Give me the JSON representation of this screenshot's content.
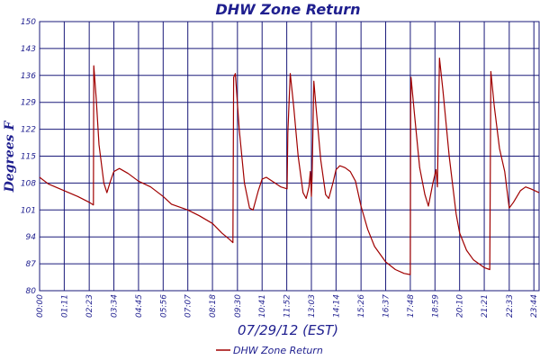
{
  "chart_data": {
    "type": "line",
    "title": "DHW Zone Return",
    "xlabel": "07/29/12 (EST)",
    "ylabel": "Degrees F",
    "ylim": [
      80,
      150
    ],
    "yticks": [
      "80",
      "87",
      "94",
      "101",
      "108",
      "115",
      "122",
      "129",
      "136",
      "143",
      "150"
    ],
    "xlim": [
      "00:00",
      "23:59"
    ],
    "xticks": [
      "00:00",
      "01:11",
      "02:23",
      "03:34",
      "04:45",
      "05:56",
      "07:07",
      "08:18",
      "09:30",
      "10:41",
      "11:52",
      "13:03",
      "14:14",
      "15:26",
      "16:37",
      "17:48",
      "18:59",
      "20:10",
      "21:21",
      "22:33",
      "23:44"
    ],
    "grid": true,
    "legend_position": "bottom",
    "series": [
      {
        "name": "DHW Zone Return",
        "color": "#a00000",
        "points": [
          [
            "00:00",
            109.5
          ],
          [
            "00:25",
            107.8
          ],
          [
            "01:11",
            106.0
          ],
          [
            "01:50",
            104.5
          ],
          [
            "02:23",
            103.0
          ],
          [
            "02:35",
            102.3
          ],
          [
            "02:36",
            138.5
          ],
          [
            "02:43",
            130.0
          ],
          [
            "02:51",
            118.0
          ],
          [
            "03:05",
            108.0
          ],
          [
            "03:14",
            105.5
          ],
          [
            "03:24",
            108.5
          ],
          [
            "03:34",
            111.0
          ],
          [
            "03:50",
            111.8
          ],
          [
            "04:15",
            110.5
          ],
          [
            "04:45",
            108.5
          ],
          [
            "05:20",
            107.0
          ],
          [
            "05:56",
            104.5
          ],
          [
            "06:20",
            102.5
          ],
          [
            "07:07",
            101.0
          ],
          [
            "07:40",
            99.5
          ],
          [
            "08:18",
            97.5
          ],
          [
            "08:45",
            95.0
          ],
          [
            "09:05",
            93.5
          ],
          [
            "09:17",
            92.5
          ],
          [
            "09:19",
            135.5
          ],
          [
            "09:24",
            136.5
          ],
          [
            "09:35",
            122.0
          ],
          [
            "09:50",
            108.0
          ],
          [
            "10:05",
            101.5
          ],
          [
            "10:15",
            101.0
          ],
          [
            "10:30",
            106.0
          ],
          [
            "10:41",
            109.0
          ],
          [
            "10:53",
            109.5
          ],
          [
            "11:10",
            108.5
          ],
          [
            "11:35",
            107.0
          ],
          [
            "11:53",
            106.5
          ],
          [
            "11:55",
            121.0
          ],
          [
            "12:02",
            136.5
          ],
          [
            "12:12",
            128.0
          ],
          [
            "12:25",
            115.0
          ],
          [
            "12:39",
            105.5
          ],
          [
            "12:48",
            104.0
          ],
          [
            "12:56",
            107.0
          ],
          [
            "13:00",
            111.0
          ],
          [
            "13:03",
            104.5
          ],
          [
            "13:05",
            110.0
          ],
          [
            "13:10",
            134.5
          ],
          [
            "13:18",
            126.0
          ],
          [
            "13:30",
            114.0
          ],
          [
            "13:44",
            105.0
          ],
          [
            "13:53",
            104.0
          ],
          [
            "14:05",
            108.0
          ],
          [
            "14:14",
            111.5
          ],
          [
            "14:25",
            112.5
          ],
          [
            "14:40",
            112.0
          ],
          [
            "14:55",
            111.0
          ],
          [
            "15:10",
            108.5
          ],
          [
            "15:26",
            102.0
          ],
          [
            "15:45",
            96.0
          ],
          [
            "16:05",
            91.5
          ],
          [
            "16:37",
            87.5
          ],
          [
            "17:05",
            85.5
          ],
          [
            "17:30",
            84.5
          ],
          [
            "17:48",
            84.2
          ],
          [
            "17:49",
            128.0
          ],
          [
            "17:50",
            135.5
          ],
          [
            "18:00",
            126.0
          ],
          [
            "18:15",
            112.0
          ],
          [
            "18:30",
            105.0
          ],
          [
            "18:40",
            102.0
          ],
          [
            "18:53",
            108.0
          ],
          [
            "19:02",
            111.5
          ],
          [
            "19:06",
            107.0
          ],
          [
            "19:12",
            140.5
          ],
          [
            "19:22",
            132.0
          ],
          [
            "19:40",
            115.0
          ],
          [
            "20:00",
            100.0
          ],
          [
            "20:10",
            95.0
          ],
          [
            "20:30",
            90.5
          ],
          [
            "20:50",
            88.0
          ],
          [
            "21:21",
            86.0
          ],
          [
            "21:37",
            85.5
          ],
          [
            "21:40",
            137.0
          ],
          [
            "21:50",
            128.0
          ],
          [
            "22:05",
            117.0
          ],
          [
            "22:20",
            111.0
          ],
          [
            "22:33",
            101.5
          ],
          [
            "22:45",
            103.0
          ],
          [
            "23:05",
            106.0
          ],
          [
            "23:20",
            107.0
          ],
          [
            "23:35",
            106.5
          ],
          [
            "23:59",
            105.5
          ]
        ]
      }
    ]
  }
}
